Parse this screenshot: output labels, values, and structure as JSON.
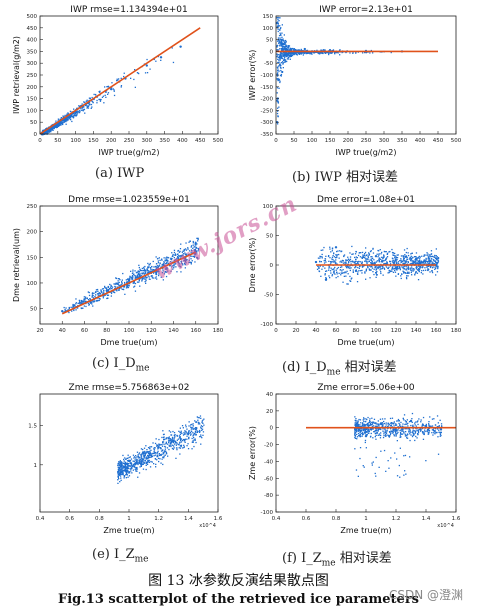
{
  "chart_data": [
    {
      "type": "scatter",
      "title": "IWP rmse=1.134394e+01",
      "xlabel": "IWP true(g/m2)",
      "ylabel": "IWP retrieval(g/m2)",
      "xlim": [
        0,
        500
      ],
      "ylim": [
        0,
        500
      ],
      "xticks": [
        "0",
        "50",
        "100",
        "150",
        "200",
        "250",
        "300",
        "350",
        "400",
        "450",
        "500"
      ],
      "yticks": [
        "0",
        "50",
        "100",
        "150",
        "200",
        "250",
        "300",
        "350",
        "400",
        "450",
        "500"
      ],
      "series": [
        {
          "values": [
            [
              10,
              8
            ],
            [
              30,
              28
            ],
            [
              50,
              47
            ],
            [
              80,
              78
            ],
            [
              100,
              96
            ],
            [
              130,
              128
            ],
            [
              160,
              158
            ],
            [
              200,
              190
            ],
            [
              240,
              235
            ],
            [
              300,
              290
            ],
            [
              340,
              325
            ],
            [
              395,
              370
            ]
          ]
        }
      ],
      "fit_line": [
        [
          0,
          0
        ],
        [
          450,
          450
        ]
      ],
      "grid": false
    },
    {
      "type": "scatter",
      "title": "IWP error=2.13e+01",
      "xlabel": "IWP true(g/m2)",
      "ylabel": "IWP error(%)",
      "xlim": [
        0,
        500
      ],
      "ylim": [
        -350,
        150
      ],
      "xticks": [
        "0",
        "50",
        "100",
        "150",
        "200",
        "250",
        "300",
        "350",
        "400",
        "450",
        "500"
      ],
      "yticks": [
        "-350",
        "-300",
        "-250",
        "-200",
        "-150",
        "-100",
        "-50",
        "0",
        "50",
        "100",
        "150"
      ],
      "series": [
        {
          "values": [
            [
              2,
              120
            ],
            [
              3,
              -300
            ],
            [
              5,
              -200
            ],
            [
              8,
              -120
            ],
            [
              12,
              -60
            ],
            [
              20,
              30
            ],
            [
              40,
              -20
            ],
            [
              80,
              10
            ],
            [
              150,
              5
            ],
            [
              250,
              2
            ],
            [
              350,
              0
            ]
          ]
        }
      ],
      "fit_line": [
        [
          0,
          0
        ],
        [
          450,
          0
        ]
      ],
      "grid": false
    },
    {
      "type": "scatter",
      "title": "Dme rmse=1.023559e+01",
      "xlabel": "Dme true(um)",
      "ylabel": "Dme retrieval(um)",
      "xlim": [
        20,
        180
      ],
      "ylim": [
        20,
        250
      ],
      "xticks": [
        "20",
        "40",
        "60",
        "80",
        "100",
        "120",
        "140",
        "160",
        "180"
      ],
      "yticks": [
        "50",
        "100",
        "150",
        "200",
        "250"
      ],
      "series": [
        {
          "values": [
            [
              40,
              45
            ],
            [
              50,
              55
            ],
            [
              60,
              68
            ],
            [
              80,
              85
            ],
            [
              100,
              105
            ],
            [
              120,
              122
            ],
            [
              140,
              140
            ],
            [
              150,
              150
            ],
            [
              160,
              162
            ]
          ]
        }
      ],
      "fit_line": [
        [
          40,
          40
        ],
        [
          160,
          160
        ]
      ],
      "grid": false
    },
    {
      "type": "scatter",
      "title": "Dme error=1.08e+01",
      "xlabel": "Dme true(um)",
      "ylabel": "Dme error(%)",
      "xlim": [
        0,
        180
      ],
      "ylim": [
        -100,
        100
      ],
      "xticks": [
        "0",
        "20",
        "40",
        "60",
        "80",
        "100",
        "120",
        "140",
        "160",
        "180"
      ],
      "yticks": [
        "-100",
        "-50",
        "0",
        "50",
        "100"
      ],
      "series": [
        {
          "values": [
            [
              40,
              5
            ],
            [
              50,
              -25
            ],
            [
              60,
              30
            ],
            [
              80,
              -10
            ],
            [
              100,
              15
            ],
            [
              120,
              -5
            ],
            [
              140,
              10
            ],
            [
              160,
              0
            ]
          ]
        }
      ],
      "fit_line": [
        [
          40,
          0
        ],
        [
          160,
          0
        ]
      ],
      "grid": false
    },
    {
      "type": "scatter",
      "title": "Zme rmse=5.756863e+02",
      "xlabel": "Zme true(m)",
      "ylabel": "",
      "xlim": [
        0.4,
        1.6
      ],
      "ylim": [
        0.4,
        1.9
      ],
      "xticks": [
        "0.4",
        "0.6",
        "0.8",
        "1",
        "1.2",
        "1.4",
        "1.6"
      ],
      "yticks": [
        "1",
        "1.5"
      ],
      "axis_exponent": "x10^4",
      "series": [
        {
          "values": [
            [
              0.95,
              1.0
            ],
            [
              1.0,
              1.05
            ],
            [
              1.1,
              1.15
            ],
            [
              1.2,
              1.22
            ],
            [
              1.3,
              1.3
            ],
            [
              1.4,
              1.4
            ],
            [
              1.45,
              1.45
            ]
          ]
        }
      ],
      "grid": false
    },
    {
      "type": "scatter",
      "title": "Zme error=5.06e+00",
      "xlabel": "Zme true(m)",
      "ylabel": "Zme error(%)",
      "xlim": [
        0.4,
        1.6
      ],
      "ylim": [
        -100,
        40
      ],
      "xticks": [
        "0.4",
        "0.6",
        "0.8",
        "1",
        "1.2",
        "1.4",
        "1.6"
      ],
      "yticks": [
        "-100",
        "-80",
        "-60",
        "-40",
        "-20",
        "0",
        "20",
        "40"
      ],
      "axis_exponent": "x10^4",
      "series": [
        {
          "values": [
            [
              0.95,
              0
            ],
            [
              1.0,
              -10
            ],
            [
              1.1,
              5
            ],
            [
              1.2,
              -3
            ],
            [
              1.3,
              8
            ],
            [
              1.4,
              2
            ],
            [
              1.5,
              -2
            ]
          ]
        }
      ],
      "fit_line": [
        [
          0.6,
          0
        ],
        [
          1.6,
          0
        ]
      ],
      "grid": false
    }
  ],
  "captions": [
    "(a) IWP",
    "(b) IWP 相对误差",
    "(c)  I_D",
    "(d)  I_D",
    "(e)  I_Z",
    "(f)  I_Z"
  ],
  "caption_subscripts": [
    "me",
    "me",
    "me",
    "me"
  ],
  "caption_suffix": "相对误差",
  "figure_caption_cn": "图 13    冰参数反演结果散点图",
  "figure_caption_en": "Fig.13 scatterplot of the retrieved ice parameters",
  "watermark": "www.jors.cn",
  "credit": "CSDN @澄渊",
  "colors": {
    "points": "#1f6fd0",
    "fit": "#e0521b",
    "axis": "#222222",
    "watermark": "#c85096"
  }
}
